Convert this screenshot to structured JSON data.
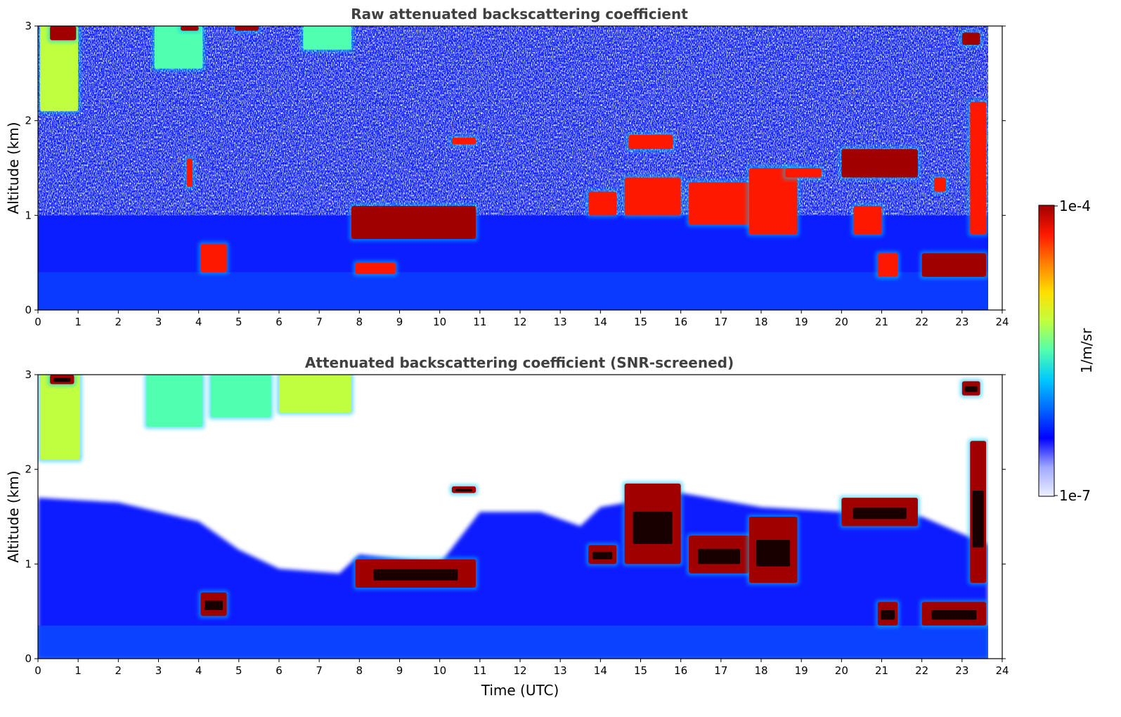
{
  "chart_data": [
    {
      "type": "heatmap",
      "title": "Raw attenuated backscattering coefficient",
      "xlabel": "",
      "ylabel": "Altitude (km)",
      "xlim": [
        0,
        24
      ],
      "ylim": [
        0,
        3
      ],
      "xticks": [
        "0",
        "1",
        "2",
        "3",
        "4",
        "5",
        "6",
        "7",
        "8",
        "9",
        "10",
        "11",
        "12",
        "13",
        "14",
        "15",
        "16",
        "17",
        "18",
        "19",
        "20",
        "21",
        "22",
        "23",
        "24"
      ],
      "yticks": [
        "0",
        "1",
        "2",
        "3"
      ],
      "data_end_time": 23.65,
      "layers": [
        {
          "x": [
            0.05,
            1.0
          ],
          "y": [
            2.1,
            3.0
          ],
          "value": 5e-06
        },
        {
          "x": [
            0.3,
            0.95
          ],
          "y": [
            2.85,
            3.0
          ],
          "value": 0.0001
        },
        {
          "x": [
            2.9,
            4.1
          ],
          "y": [
            2.55,
            3.0
          ],
          "value": 4e-06
        },
        {
          "x": [
            3.55,
            4.0
          ],
          "y": [
            2.95,
            3.0
          ],
          "value": 0.0001
        },
        {
          "x": [
            4.9,
            5.5
          ],
          "y": [
            2.95,
            3.0
          ],
          "value": 0.0001
        },
        {
          "x": [
            6.6,
            7.8
          ],
          "y": [
            2.75,
            3.0
          ],
          "value": 4e-06
        },
        {
          "x": [
            3.7,
            3.85
          ],
          "y": [
            1.3,
            1.6
          ],
          "value": 6e-05
        },
        {
          "x": [
            4.05,
            4.7
          ],
          "y": [
            0.4,
            0.7
          ],
          "value": 7e-05
        },
        {
          "x": [
            7.8,
            10.9
          ],
          "y": [
            0.75,
            1.1
          ],
          "value": 9e-05
        },
        {
          "x": [
            7.9,
            8.9
          ],
          "y": [
            0.38,
            0.5
          ],
          "value": 6e-05
        },
        {
          "x": [
            10.3,
            10.9
          ],
          "y": [
            1.75,
            1.82
          ],
          "value": 7e-05
        },
        {
          "x": [
            13.7,
            14.4
          ],
          "y": [
            1.0,
            1.25
          ],
          "value": 6e-05
        },
        {
          "x": [
            14.7,
            15.8
          ],
          "y": [
            1.7,
            1.85
          ],
          "value": 7e-05
        },
        {
          "x": [
            14.6,
            16.0
          ],
          "y": [
            1.0,
            1.4
          ],
          "value": 6e-05
        },
        {
          "x": [
            16.2,
            17.7
          ],
          "y": [
            0.9,
            1.35
          ],
          "value": 7e-05
        },
        {
          "x": [
            17.7,
            18.9
          ],
          "y": [
            0.8,
            1.5
          ],
          "value": 6e-05
        },
        {
          "x": [
            18.6,
            19.5
          ],
          "y": [
            1.4,
            1.5
          ],
          "value": 7e-05
        },
        {
          "x": [
            20.0,
            21.9
          ],
          "y": [
            1.4,
            1.7
          ],
          "value": 9e-05
        },
        {
          "x": [
            20.3,
            21.0
          ],
          "y": [
            0.8,
            1.1
          ],
          "value": 5e-05
        },
        {
          "x": [
            20.9,
            21.4
          ],
          "y": [
            0.35,
            0.6
          ],
          "value": 7e-05
        },
        {
          "x": [
            22.0,
            23.6
          ],
          "y": [
            0.35,
            0.6
          ],
          "value": 8e-05
        },
        {
          "x": [
            22.3,
            22.6
          ],
          "y": [
            1.25,
            1.4
          ],
          "value": 6e-05
        },
        {
          "x": [
            23.0,
            23.45
          ],
          "y": [
            2.8,
            2.93
          ],
          "value": 9e-05
        },
        {
          "x": [
            23.2,
            23.6
          ],
          "y": [
            0.8,
            2.2
          ],
          "value": 6e-05
        }
      ]
    },
    {
      "type": "heatmap",
      "title": "Attenuated backscattering coefficient (SNR-screened)",
      "xlabel": "Time (UTC)",
      "ylabel": "Altitude (km)",
      "xlim": [
        0,
        24
      ],
      "ylim": [
        0,
        3
      ],
      "xticks": [
        "0",
        "1",
        "2",
        "3",
        "4",
        "5",
        "6",
        "7",
        "8",
        "9",
        "10",
        "11",
        "12",
        "13",
        "14",
        "15",
        "16",
        "17",
        "18",
        "19",
        "20",
        "21",
        "22",
        "23",
        "24"
      ],
      "yticks": [
        "0",
        "1",
        "2",
        "3"
      ],
      "data_end_time": 23.65,
      "layers": [
        {
          "x": [
            0.05,
            1.05
          ],
          "y": [
            2.1,
            3.0
          ],
          "value": 5e-06
        },
        {
          "x": [
            0.3,
            0.9
          ],
          "y": [
            2.9,
            3.0
          ],
          "value": 0.0001
        },
        {
          "x": [
            2.7,
            4.1
          ],
          "y": [
            2.45,
            3.0
          ],
          "value": 4e-06
        },
        {
          "x": [
            4.3,
            5.8
          ],
          "y": [
            2.55,
            3.0
          ],
          "value": 3e-06
        },
        {
          "x": [
            6.0,
            7.8
          ],
          "y": [
            2.6,
            3.0
          ],
          "value": 5e-06
        },
        {
          "x": [
            4.05,
            4.7
          ],
          "y": [
            0.45,
            0.7
          ],
          "value": 9e-05
        },
        {
          "x": [
            7.9,
            10.9
          ],
          "y": [
            0.75,
            1.05
          ],
          "value": 0.0001
        },
        {
          "x": [
            10.3,
            10.9
          ],
          "y": [
            1.75,
            1.82
          ],
          "value": 8e-05
        },
        {
          "x": [
            13.7,
            14.4
          ],
          "y": [
            1.0,
            1.2
          ],
          "value": 9e-05
        },
        {
          "x": [
            14.6,
            16.0
          ],
          "y": [
            1.0,
            1.85
          ],
          "value": 8e-05
        },
        {
          "x": [
            16.2,
            17.7
          ],
          "y": [
            0.9,
            1.3
          ],
          "value": 8e-05
        },
        {
          "x": [
            17.7,
            18.9
          ],
          "y": [
            0.8,
            1.5
          ],
          "value": 8e-05
        },
        {
          "x": [
            20.0,
            21.9
          ],
          "y": [
            1.4,
            1.7
          ],
          "value": 0.0001
        },
        {
          "x": [
            20.9,
            21.4
          ],
          "y": [
            0.35,
            0.6
          ],
          "value": 9e-05
        },
        {
          "x": [
            22.0,
            23.6
          ],
          "y": [
            0.35,
            0.6
          ],
          "value": 0.0001
        },
        {
          "x": [
            23.0,
            23.45
          ],
          "y": [
            2.78,
            2.93
          ],
          "value": 0.0001
        },
        {
          "x": [
            23.2,
            23.6
          ],
          "y": [
            0.8,
            2.3
          ],
          "value": 8e-05
        }
      ]
    }
  ],
  "colorbar": {
    "label": "1/m/sr",
    "max_label": "1e-4",
    "min_label": "1e-7",
    "min": 1e-07,
    "max": 0.0001,
    "scale": "log",
    "colors": [
      "#eef0ff",
      "#a0a8ff",
      "#0000ff",
      "#0068ff",
      "#00c8ff",
      "#50ffb0",
      "#c0ff40",
      "#ffe000",
      "#ff8000",
      "#ff1800",
      "#a00000"
    ]
  },
  "colors": {
    "title_text": "#404040",
    "axis": "#000000",
    "screened_saturation": "#000000",
    "background": "#ffffff"
  }
}
